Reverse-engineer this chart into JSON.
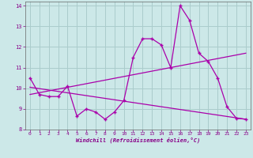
{
  "xlabel": "Windchill (Refroidissement éolien,°C)",
  "bg_color": "#cce8e8",
  "line_color": "#aa00aa",
  "grid_color": "#aacccc",
  "xlim": [
    -0.5,
    23.5
  ],
  "ylim": [
    8,
    14.2
  ],
  "xticks": [
    0,
    1,
    2,
    3,
    4,
    5,
    6,
    7,
    8,
    9,
    10,
    11,
    12,
    13,
    14,
    15,
    16,
    17,
    18,
    19,
    20,
    21,
    22,
    23
  ],
  "yticks": [
    8,
    9,
    10,
    11,
    12,
    13,
    14
  ],
  "main_line_x": [
    0,
    1,
    2,
    3,
    4,
    5,
    6,
    7,
    8,
    9,
    10,
    11,
    12,
    13,
    14,
    15,
    16,
    17,
    18,
    19,
    20,
    21,
    22,
    23
  ],
  "main_line_y": [
    10.5,
    9.7,
    9.6,
    9.6,
    10.1,
    8.65,
    9.0,
    8.85,
    8.5,
    8.85,
    9.4,
    11.5,
    12.4,
    12.4,
    12.1,
    11.0,
    14.0,
    13.3,
    11.7,
    11.3,
    10.5,
    9.1,
    8.55,
    8.5
  ],
  "trend1_x": [
    0,
    23
  ],
  "trend1_y": [
    9.7,
    11.7
  ],
  "trend2_x": [
    0,
    23
  ],
  "trend2_y": [
    10.05,
    8.5
  ]
}
